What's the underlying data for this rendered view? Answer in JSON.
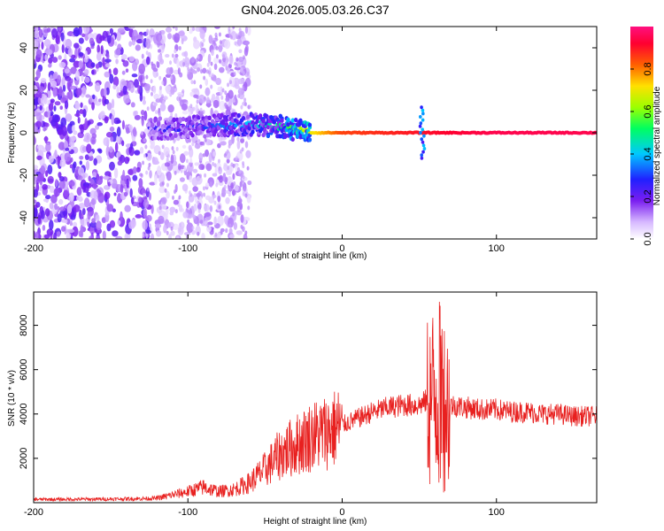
{
  "title": "GN04.2026.005.03.26.C37",
  "chart_data": [
    {
      "type": "heatmap",
      "xlabel": "Height of straight line (km)",
      "ylabel": "Frequency (Hz)",
      "xlim": [
        -200,
        165
      ],
      "ylim": [
        -50,
        50
      ],
      "xticks": [
        -200,
        -100,
        0,
        100
      ],
      "yticks": [
        40,
        20,
        0,
        -20,
        -40
      ],
      "colorbar": {
        "label": "Normalized spectral amplitude",
        "range": [
          0,
          1
        ],
        "ticks": [
          0.0,
          0.2,
          0.4,
          0.6,
          0.8
        ]
      },
      "ridge": [
        {
          "x": -120,
          "y": 2,
          "amp": 0.25
        },
        {
          "x": -90,
          "y": 3,
          "amp": 0.3
        },
        {
          "x": -60,
          "y": 4,
          "amp": 0.4
        },
        {
          "x": -40,
          "y": 3,
          "amp": 0.5
        },
        {
          "x": -20,
          "y": 0,
          "amp": 0.7
        },
        {
          "x": 0,
          "y": 0,
          "amp": 0.85
        },
        {
          "x": 50,
          "y": 0,
          "amp": 0.9
        },
        {
          "x": 100,
          "y": 0,
          "amp": 0.95
        },
        {
          "x": 165,
          "y": 0,
          "amp": 0.95
        }
      ]
    },
    {
      "type": "line",
      "xlabel": "Height of straight line (km)",
      "ylabel": "SNR (10 * v/v)",
      "xlim": [
        -200,
        165
      ],
      "ylim": [
        0,
        9500
      ],
      "xticks": [
        -200,
        -100,
        0,
        100
      ],
      "yticks": [
        2000,
        4000,
        6000,
        8000
      ],
      "color": "#e8201f",
      "series": [
        {
          "x": [
            -200,
            -180,
            -160,
            -140,
            -120,
            -110,
            -100,
            -90,
            -80,
            -70,
            -60,
            -50,
            -40,
            -30,
            -20,
            -10,
            0,
            10,
            20,
            30,
            40,
            50,
            55,
            60,
            62,
            65,
            70,
            80,
            90,
            100,
            110,
            120,
            130,
            140,
            150,
            165
          ],
          "values": [
            150,
            150,
            160,
            170,
            200,
            350,
            500,
            700,
            500,
            600,
            900,
            1500,
            2200,
            2600,
            3000,
            3200,
            3500,
            3800,
            4100,
            4300,
            4400,
            4400,
            4600,
            4800,
            5000,
            4600,
            4400,
            4300,
            4200,
            4200,
            4100,
            4100,
            4000,
            4000,
            3900,
            3900
          ]
        }
      ]
    }
  ]
}
